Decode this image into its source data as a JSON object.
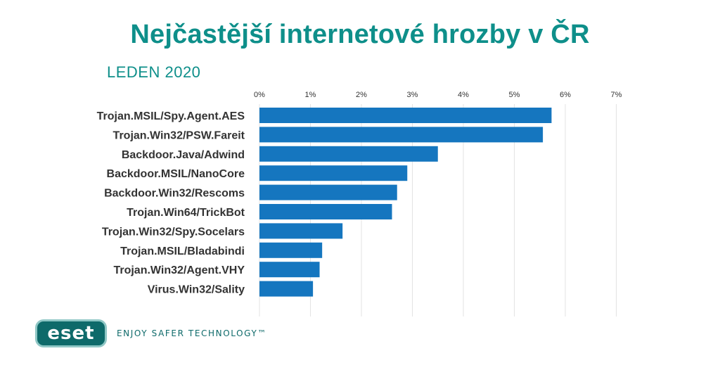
{
  "page": {
    "title": "Nejčastější internetové hrozby v ČR",
    "subtitle": "LEDEN 2020"
  },
  "brand": {
    "logo_text": "eset",
    "tagline": "ENJOY SAFER TECHNOLOGY™"
  },
  "colors": {
    "bar": "#1576bf",
    "title": "#0e8f8a",
    "grid": "#e3e3e3",
    "brand": "#0e6a6a"
  },
  "chart_data": {
    "type": "bar",
    "orientation": "horizontal",
    "categories": [
      "Trojan.MSIL/Spy.Agent.AES",
      "Trojan.Win32/PSW.Fareit",
      "Backdoor.Java/Adwind",
      "Backdoor.MSIL/NanoCore",
      "Backdoor.Win32/Rescoms",
      "Trojan.Win64/TrickBot",
      "Trojan.Win32/Spy.Socelars",
      "Trojan.MSIL/Bladabindi",
      "Trojan.Win32/Agent.VHY",
      "Virus.Win32/Sality"
    ],
    "values": [
      5.73,
      5.56,
      3.5,
      2.9,
      2.7,
      2.6,
      1.63,
      1.23,
      1.18,
      1.05
    ],
    "unit": "%",
    "xlim": [
      0,
      7
    ],
    "ticks": [
      "0%",
      "1%",
      "2%",
      "3%",
      "4%",
      "5%",
      "6%",
      "7%"
    ],
    "grid": true,
    "axis_position": "top"
  }
}
